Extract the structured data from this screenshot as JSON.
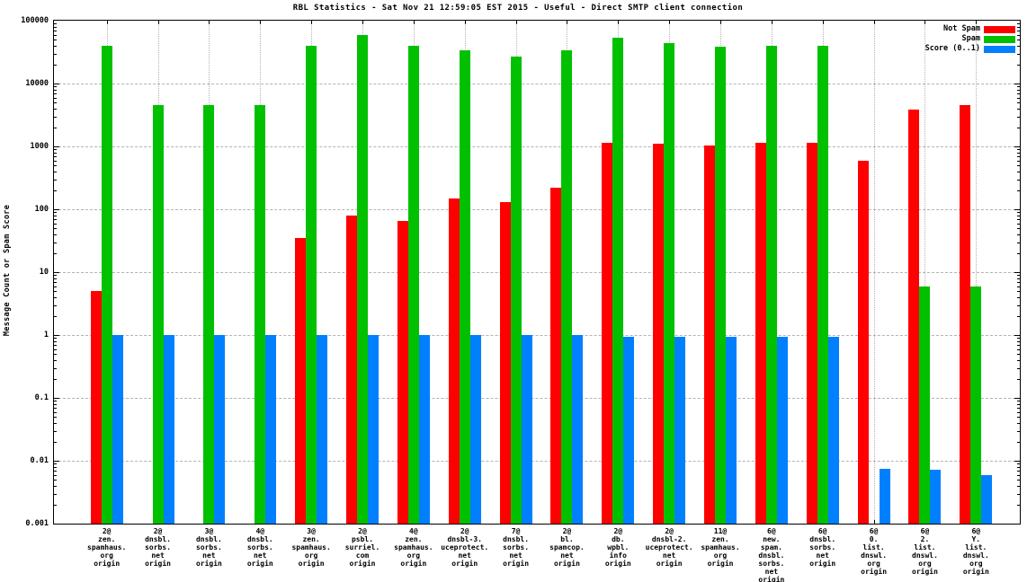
{
  "chart_data": {
    "type": "bar",
    "title": "RBL Statistics - Sat Nov 21 12:59:05 EST 2015 - Useful - Direct SMTP client connection",
    "ylabel": "Message Count or Spam Score",
    "xlabel": "",
    "y_scale": "log",
    "ylim": [
      0.001,
      100000
    ],
    "y_tick_labels": [
      "100000",
      "10000",
      "1000",
      "100",
      "10",
      "1",
      "0.1",
      "0.01",
      "0.001"
    ],
    "grid": "both",
    "legend_position": "top-right",
    "colors": {
      "not_spam": "#ff0000",
      "spam": "#00c000",
      "score": "#0080ff",
      "grid": "#b3b3b3",
      "text": "#000000",
      "background": "#ffffff"
    },
    "legend": [
      {
        "name": "Not Spam",
        "color": "#ff0000"
      },
      {
        "name": "Spam",
        "color": "#00c000"
      },
      {
        "name": "Score (0..1)",
        "color": "#0080ff"
      }
    ],
    "categories": [
      [
        "2@",
        "zen.",
        "spamhaus.",
        "org",
        "origin"
      ],
      [
        "2@",
        "dnsbl.",
        "sorbs.",
        "net",
        "origin"
      ],
      [
        "3@",
        "dnsbl.",
        "sorbs.",
        "net",
        "origin"
      ],
      [
        "4@",
        "dnsbl.",
        "sorbs.",
        "net",
        "origin"
      ],
      [
        "3@",
        "zen.",
        "spamhaus.",
        "org",
        "origin"
      ],
      [
        "2@",
        "psbl.",
        "surriel.",
        "com",
        "origin"
      ],
      [
        "4@",
        "zen.",
        "spamhaus.",
        "org",
        "origin"
      ],
      [
        "2@",
        "dnsbl-3.",
        "uceprotect.",
        "net",
        "origin"
      ],
      [
        "7@",
        "dnsbl.",
        "sorbs.",
        "net",
        "origin"
      ],
      [
        "2@",
        "bl.",
        "spamcop.",
        "net",
        "origin"
      ],
      [
        "2@",
        "db.",
        "wpbl.",
        "info",
        "origin"
      ],
      [
        "2@",
        "dnsbl-2.",
        "uceprotect.",
        "net",
        "origin"
      ],
      [
        "11@",
        "zen.",
        "spamhaus.",
        "org",
        "origin"
      ],
      [
        "6@",
        "new.",
        "spam.",
        "dnsbl.",
        "sorbs.",
        "net",
        "origin"
      ],
      [
        "6@",
        "dnsbl.",
        "sorbs.",
        "net",
        "origin"
      ],
      [
        "6@",
        "0.",
        "list.",
        "dnswl.",
        "org",
        "origin"
      ],
      [
        "6@",
        "2.",
        "list.",
        "dnswl.",
        "org",
        "origin"
      ],
      [
        "6@",
        "Y.",
        "list.",
        "dnswl.",
        "org",
        "origin"
      ]
    ],
    "series": [
      {
        "name": "Not Spam",
        "color": "#ff0000",
        "values": [
          5,
          null,
          null,
          null,
          35,
          80,
          65,
          150,
          130,
          220,
          1150,
          1100,
          1050,
          1150,
          1150,
          600,
          3900,
          4500
        ]
      },
      {
        "name": "Spam",
        "color": "#00c000",
        "values": [
          40000,
          4500,
          4500,
          4500,
          40000,
          60000,
          40000,
          34000,
          27000,
          34000,
          53000,
          44000,
          38000,
          40000,
          40000,
          null,
          6,
          6
        ]
      },
      {
        "name": "Score (0..1)",
        "color": "#0080ff",
        "values": [
          1,
          1,
          1,
          1,
          1,
          1,
          1,
          1,
          1,
          1,
          0.95,
          0.95,
          0.95,
          0.95,
          0.95,
          0.0074,
          0.0072,
          0.0059
        ]
      }
    ]
  }
}
